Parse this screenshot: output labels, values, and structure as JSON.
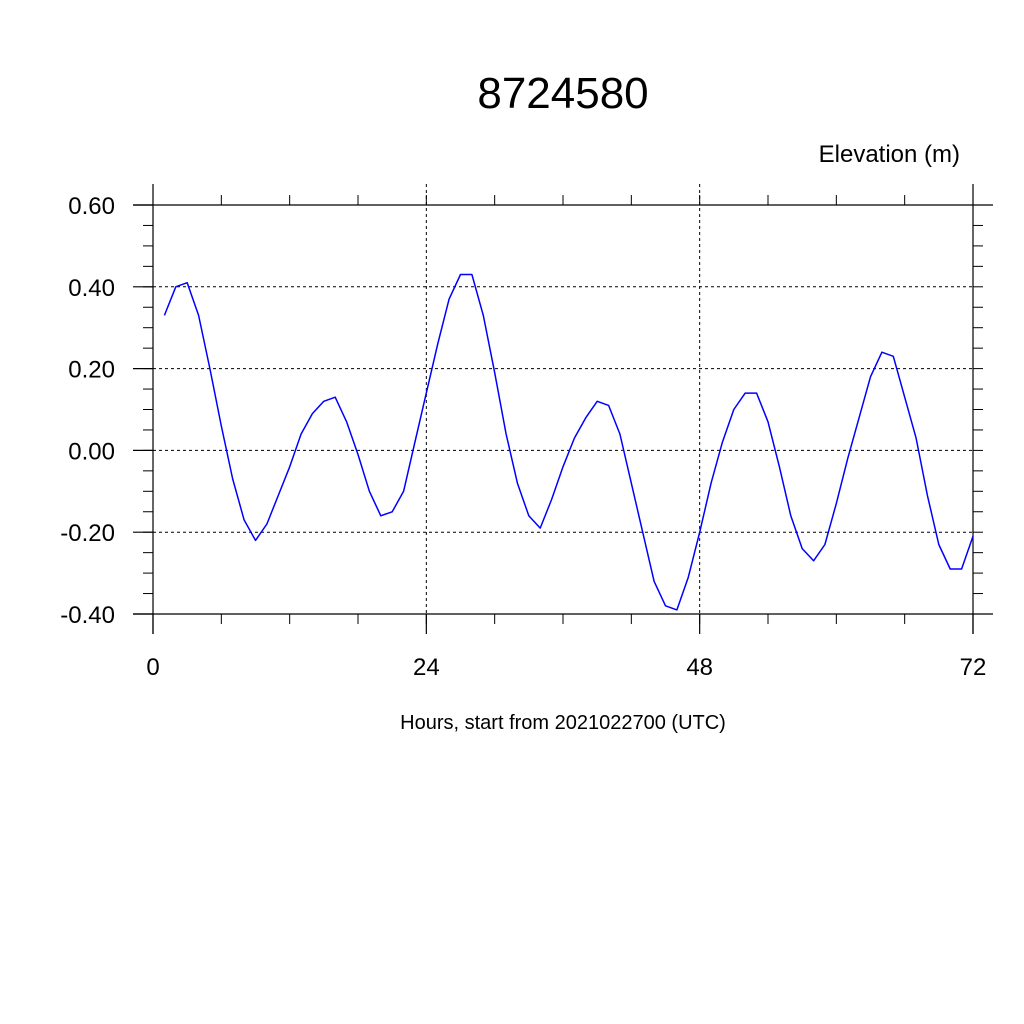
{
  "chart_data": {
    "type": "line",
    "title": "8724580",
    "ylabel": "Elevation (m)",
    "xlabel": "Hours, start from 2021022700 (UTC)",
    "xlim": [
      0,
      72
    ],
    "ylim": [
      -0.4,
      0.6
    ],
    "x_ticks": [
      0,
      24,
      48,
      72
    ],
    "x_tick_labels": [
      "0",
      "24",
      "48",
      "72"
    ],
    "y_ticks": [
      -0.4,
      -0.2,
      0.0,
      0.2,
      0.4,
      0.6
    ],
    "y_tick_labels": [
      "-0.40",
      "-0.20",
      "0.00",
      "0.20",
      "0.40",
      "0.60"
    ],
    "grid": true,
    "series": [
      {
        "color": "#0000ff",
        "x": [
          1,
          2,
          3,
          4,
          5,
          6,
          7,
          8,
          9,
          10,
          11,
          12,
          13,
          14,
          15,
          16,
          17,
          18,
          19,
          20,
          21,
          22,
          23,
          24,
          25,
          26,
          27,
          28,
          29,
          30,
          31,
          32,
          33,
          34,
          35,
          36,
          37,
          38,
          39,
          40,
          41,
          42,
          43,
          44,
          45,
          46,
          47,
          48,
          49,
          50,
          51,
          52,
          53,
          54,
          55,
          56,
          57,
          58,
          59,
          60,
          61,
          62,
          63,
          64,
          65,
          66,
          67,
          68,
          69,
          70,
          71,
          72
        ],
        "values": [
          0.33,
          0.4,
          0.41,
          0.33,
          0.2,
          0.06,
          -0.07,
          -0.17,
          -0.22,
          -0.18,
          -0.11,
          -0.04,
          0.04,
          0.09,
          0.12,
          0.13,
          0.07,
          -0.01,
          -0.1,
          -0.16,
          -0.15,
          -0.1,
          0.02,
          0.14,
          0.26,
          0.37,
          0.43,
          0.43,
          0.33,
          0.19,
          0.04,
          -0.08,
          -0.16,
          -0.19,
          -0.12,
          -0.04,
          0.03,
          0.08,
          0.12,
          0.11,
          0.04,
          -0.08,
          -0.2,
          -0.32,
          -0.38,
          -0.39,
          -0.31,
          -0.2,
          -0.08,
          0.02,
          0.1,
          0.14,
          0.14,
          0.07,
          -0.04,
          -0.16,
          -0.24,
          -0.27,
          -0.23,
          -0.13,
          -0.02,
          0.08,
          0.18,
          0.24,
          0.23,
          0.13,
          0.03,
          -0.11,
          -0.23,
          -0.29,
          -0.29,
          -0.21
        ]
      }
    ]
  }
}
